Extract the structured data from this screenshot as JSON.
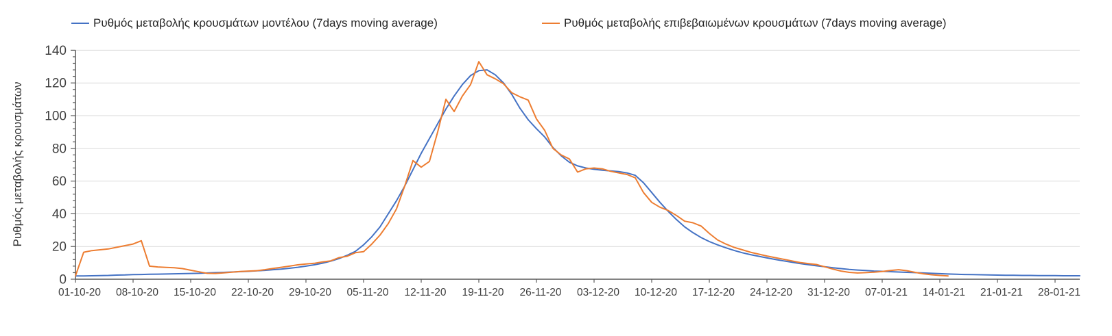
{
  "page": {
    "background": "#ffffff"
  },
  "colors": {
    "model_line": "#4472c4",
    "confirmed_line": "#ed7d31",
    "gridline": "#d9d9d9",
    "axis": "#595959",
    "tick_text": "#404040",
    "legend_text": "#252525"
  },
  "legend": {
    "items": [
      {
        "label": "Ρυθμός μεταβολής κρουσμάτων μοντέλου (7days moving average)",
        "color": "#4472c4"
      },
      {
        "label": "Ρυθμός μεταβολής επιβεβαιωμένων κρουσμάτων (7days moving average)",
        "color": "#ed7d31"
      }
    ]
  },
  "chart_data": {
    "type": "line",
    "title": "",
    "xlabel": "",
    "ylabel": "Ρυθμός μεταβολής κρουσμάτων",
    "ylim": [
      0,
      140
    ],
    "yticks": [
      0,
      20,
      40,
      60,
      80,
      100,
      120,
      140
    ],
    "y_minor_tick_step": 4,
    "grid": "horizontal",
    "legend_position": "top",
    "x_is_daily_dates": true,
    "x_start_date": "01-10-20",
    "x_end_date": "31-01-21",
    "x_total_days": 122,
    "x_tick_every_days": 7,
    "x_tick_labels": [
      "01-10-20",
      "08-10-20",
      "15-10-20",
      "22-10-20",
      "29-10-20",
      "05-11-20",
      "12-11-20",
      "19-11-20",
      "26-11-20",
      "03-12-20",
      "10-12-20",
      "17-12-20",
      "24-12-20",
      "31-12-20",
      "07-01-21",
      "14-01-21",
      "21-01-21",
      "28-01-21"
    ],
    "series": [
      {
        "name": "Ρυθμός μεταβολής κρουσμάτων μοντέλου (7days moving average)",
        "color": "#4472c4",
        "start_day": 0,
        "values": [
          2.0,
          2.0,
          2.1,
          2.2,
          2.3,
          2.5,
          2.6,
          2.8,
          2.9,
          3.0,
          3.1,
          3.2,
          3.3,
          3.4,
          3.5,
          3.6,
          3.8,
          4.0,
          4.2,
          4.4,
          4.6,
          4.8,
          5.1,
          5.4,
          5.8,
          6.2,
          6.7,
          7.3,
          8.0,
          8.8,
          9.8,
          11.0,
          12.6,
          14.6,
          17.0,
          21.0,
          26.0,
          32.0,
          40.0,
          48.0,
          57.0,
          67.0,
          77.0,
          86.0,
          95.0,
          104.0,
          112.0,
          119.0,
          124.5,
          127.5,
          128.0,
          125.0,
          120.0,
          113.0,
          104.5,
          97.5,
          92.0,
          87.0,
          80.5,
          75.5,
          71.5,
          69.3,
          68.0,
          67.2,
          66.6,
          66.2,
          65.8,
          65.0,
          63.5,
          59.0,
          53.0,
          47.0,
          41.5,
          36.5,
          32.0,
          28.5,
          25.5,
          23.0,
          21.0,
          19.2,
          17.6,
          16.2,
          15.0,
          14.0,
          13.0,
          12.1,
          11.2,
          10.4,
          9.6,
          8.9,
          8.2,
          7.6,
          7.0,
          6.5,
          6.0,
          5.6,
          5.3,
          5.0,
          4.8,
          4.6,
          4.4,
          4.2,
          4.0,
          3.8,
          3.6,
          3.4,
          3.2,
          3.0,
          2.9,
          2.8,
          2.7,
          2.6,
          2.5,
          2.4,
          2.4,
          2.3,
          2.3,
          2.2,
          2.2,
          2.2,
          2.1,
          2.1,
          2.1
        ]
      },
      {
        "name": "Ρυθμός μεταβολής επιβεβαιωμένων κρουσμάτων (7days moving average)",
        "color": "#ed7d31",
        "start_day": 0,
        "values": [
          2.0,
          16.5,
          17.5,
          18.0,
          18.5,
          19.5,
          20.5,
          21.5,
          23.5,
          8.0,
          7.5,
          7.2,
          7.0,
          6.5,
          5.5,
          4.5,
          3.6,
          3.5,
          3.9,
          4.3,
          4.7,
          5.0,
          5.2,
          5.8,
          6.6,
          7.3,
          8.0,
          8.8,
          9.3,
          9.7,
          10.6,
          11.2,
          13.2,
          14.0,
          16.2,
          16.8,
          21.5,
          27.0,
          34.0,
          43.0,
          57.0,
          72.5,
          68.5,
          72.0,
          90.0,
          110.0,
          102.5,
          112.0,
          119.0,
          133.0,
          125.0,
          122.5,
          119.5,
          114.0,
          111.5,
          109.5,
          98.0,
          91.0,
          80.0,
          76.0,
          73.5,
          65.5,
          67.5,
          68.0,
          67.5,
          66.0,
          65.0,
          64.0,
          62.0,
          53.0,
          47.0,
          44.0,
          42.0,
          39.0,
          35.5,
          34.5,
          32.5,
          28.0,
          24.0,
          21.5,
          19.5,
          18.0,
          16.5,
          15.3,
          14.2,
          13.2,
          12.2,
          11.2,
          10.2,
          9.6,
          9.0,
          7.6,
          6.2,
          5.0,
          4.2,
          3.8,
          4.0,
          4.3,
          4.7,
          5.3,
          5.8,
          5.2,
          4.2,
          3.3,
          2.7,
          2.3,
          2.0
        ]
      }
    ]
  }
}
